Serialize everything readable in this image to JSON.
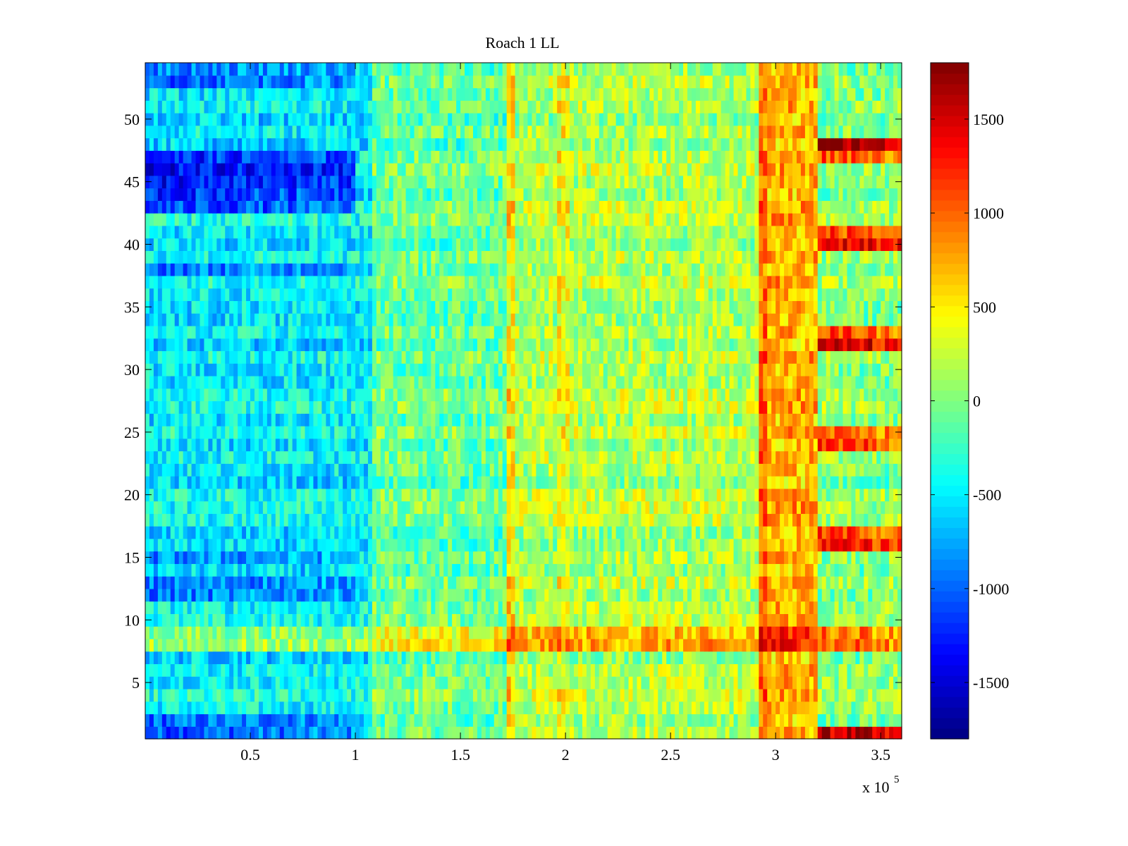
{
  "chart_data": {
    "type": "heatmap",
    "title": "Roach 1 LL",
    "xlabel": "",
    "ylabel": "",
    "x_range": [
      0,
      360000
    ],
    "y_range": [
      0.5,
      54.5
    ],
    "n_rows": 54,
    "x_tick_values": [
      0.5,
      1,
      1.5,
      2,
      2.5,
      3,
      3.5
    ],
    "x_tick_labels": [
      "0.5",
      "1",
      "1.5",
      "2",
      "2.5",
      "3",
      "3.5"
    ],
    "x_scale_base": "x 10",
    "x_scale_exponent": "5",
    "y_tick_values": [
      5,
      10,
      15,
      20,
      25,
      30,
      35,
      40,
      45,
      50
    ],
    "y_tick_labels": [
      "5",
      "10",
      "15",
      "20",
      "25",
      "30",
      "35",
      "40",
      "45",
      "50"
    ],
    "colorbar": {
      "colormap": "jet",
      "range": [
        -1800,
        1800
      ],
      "tick_values": [
        -1500,
        -1000,
        -500,
        0,
        500,
        1000,
        1500
      ],
      "tick_labels": [
        "-1500",
        "-1000",
        "-500",
        "0",
        "500",
        "1000",
        "1500"
      ]
    },
    "regions": [
      {
        "x_start": 0,
        "x_end": 108000,
        "base_value": -500,
        "note": "mostly cyan/blue, darkest rows 43-47, 1-2, 11-15, 37-39"
      },
      {
        "x_start": 108000,
        "x_end": 172000,
        "base_value": -100,
        "note": "cyan-green transition"
      },
      {
        "x_start": 172000,
        "x_end": 292000,
        "base_value": 150,
        "note": "green-yellow, stripes near 1.75e5 and 2e5"
      },
      {
        "x_start": 292000,
        "x_end": 320000,
        "base_value": 700,
        "note": "orange band"
      },
      {
        "x_start": 320000,
        "x_end": 360000,
        "base_value": 0,
        "note": "mixed; hot rows 1, 8-9, 15-17, 24-25, 32-33, 40-41, 48"
      }
    ],
    "hot_rows_right": [
      {
        "row": 48,
        "value": 1750
      },
      {
        "row": 47,
        "value": 1100
      },
      {
        "row": 40,
        "value": 1450
      },
      {
        "row": 41,
        "value": 1100
      },
      {
        "row": 32,
        "value": 1450
      },
      {
        "row": 33,
        "value": 1100
      },
      {
        "row": 16,
        "value": 1350
      },
      {
        "row": 17,
        "value": 1100
      },
      {
        "row": 24,
        "value": 1150
      },
      {
        "row": 25,
        "value": 1000
      },
      {
        "row": 8,
        "value": 1000
      },
      {
        "row": 9,
        "value": 950
      },
      {
        "row": 1,
        "value": 1550
      }
    ],
    "cold_rows_left": [
      {
        "row": 43,
        "value": -1150
      },
      {
        "row": 44,
        "value": -1200
      },
      {
        "row": 45,
        "value": -1350
      },
      {
        "row": 46,
        "value": -1400
      },
      {
        "row": 47,
        "value": -1250
      },
      {
        "row": 1,
        "value": -1050
      },
      {
        "row": 2,
        "value": -1000
      },
      {
        "row": 12,
        "value": -950
      },
      {
        "row": 13,
        "value": -950
      },
      {
        "row": 15,
        "value": -900
      },
      {
        "row": 38,
        "value": -950
      },
      {
        "row": 53,
        "value": -1000
      },
      {
        "row": 54,
        "value": -900
      }
    ]
  }
}
